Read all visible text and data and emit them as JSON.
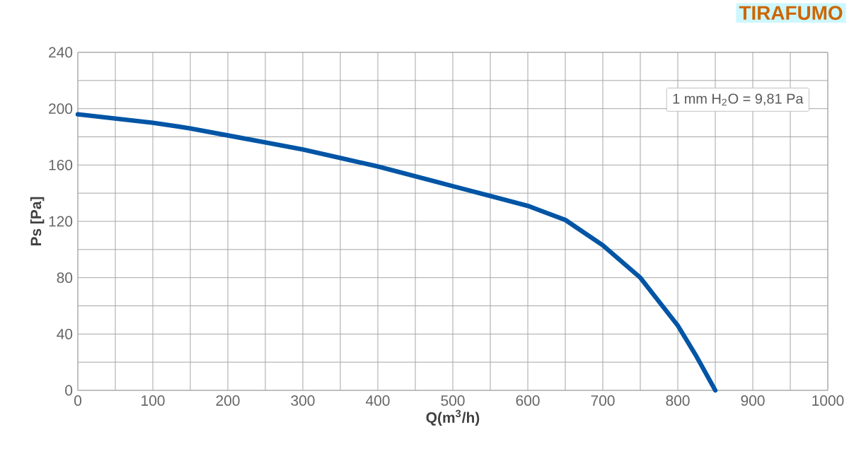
{
  "chart_data": {
    "type": "line",
    "title": "TIRAFUMO",
    "xlabel": "Q(m$^{3}$/h)",
    "ylabel": "Ps [Pa]",
    "annotations": [
      "1 mm H$_{2}$O = 9,81 Pa"
    ],
    "x": [
      0,
      50,
      100,
      150,
      200,
      250,
      300,
      350,
      400,
      450,
      500,
      550,
      600,
      650,
      700,
      750,
      800,
      825,
      850
    ],
    "series": [
      {
        "color": "#0055a5",
        "values": [
          196,
          193,
          190,
          186,
          181,
          176,
          171,
          165,
          159,
          152,
          145,
          138,
          131,
          121,
          103,
          80,
          46,
          24,
          0
        ]
      }
    ],
    "xlim": [
      0,
      1000
    ],
    "ylim": [
      0,
      240
    ],
    "xticks": [
      0,
      {
        "value": 50,
        "label": null
      },
      100,
      {
        "value": 150,
        "label": null
      },
      200,
      {
        "value": 250,
        "label": null
      },
      300,
      {
        "value": 350,
        "label": null
      },
      400,
      {
        "value": 450,
        "label": null
      },
      500,
      {
        "value": 550,
        "label": null
      },
      600,
      {
        "value": 650,
        "label": null
      },
      700,
      {
        "value": 750,
        "label": null
      },
      800,
      {
        "value": 850,
        "label": null
      },
      900,
      {
        "value": 950,
        "label": null
      },
      1000
    ],
    "yticks": [
      0,
      {
        "value": 20,
        "label": null
      },
      40,
      {
        "value": 60,
        "label": null
      },
      80,
      {
        "value": 100,
        "label": null
      },
      120,
      {
        "value": 140,
        "label": null
      },
      160,
      {
        "value": 180,
        "label": null
      },
      200,
      {
        "value": 220,
        "label": null
      },
      240
    ],
    "grid": true,
    "line_style": "solid",
    "marker": "none"
  }
}
